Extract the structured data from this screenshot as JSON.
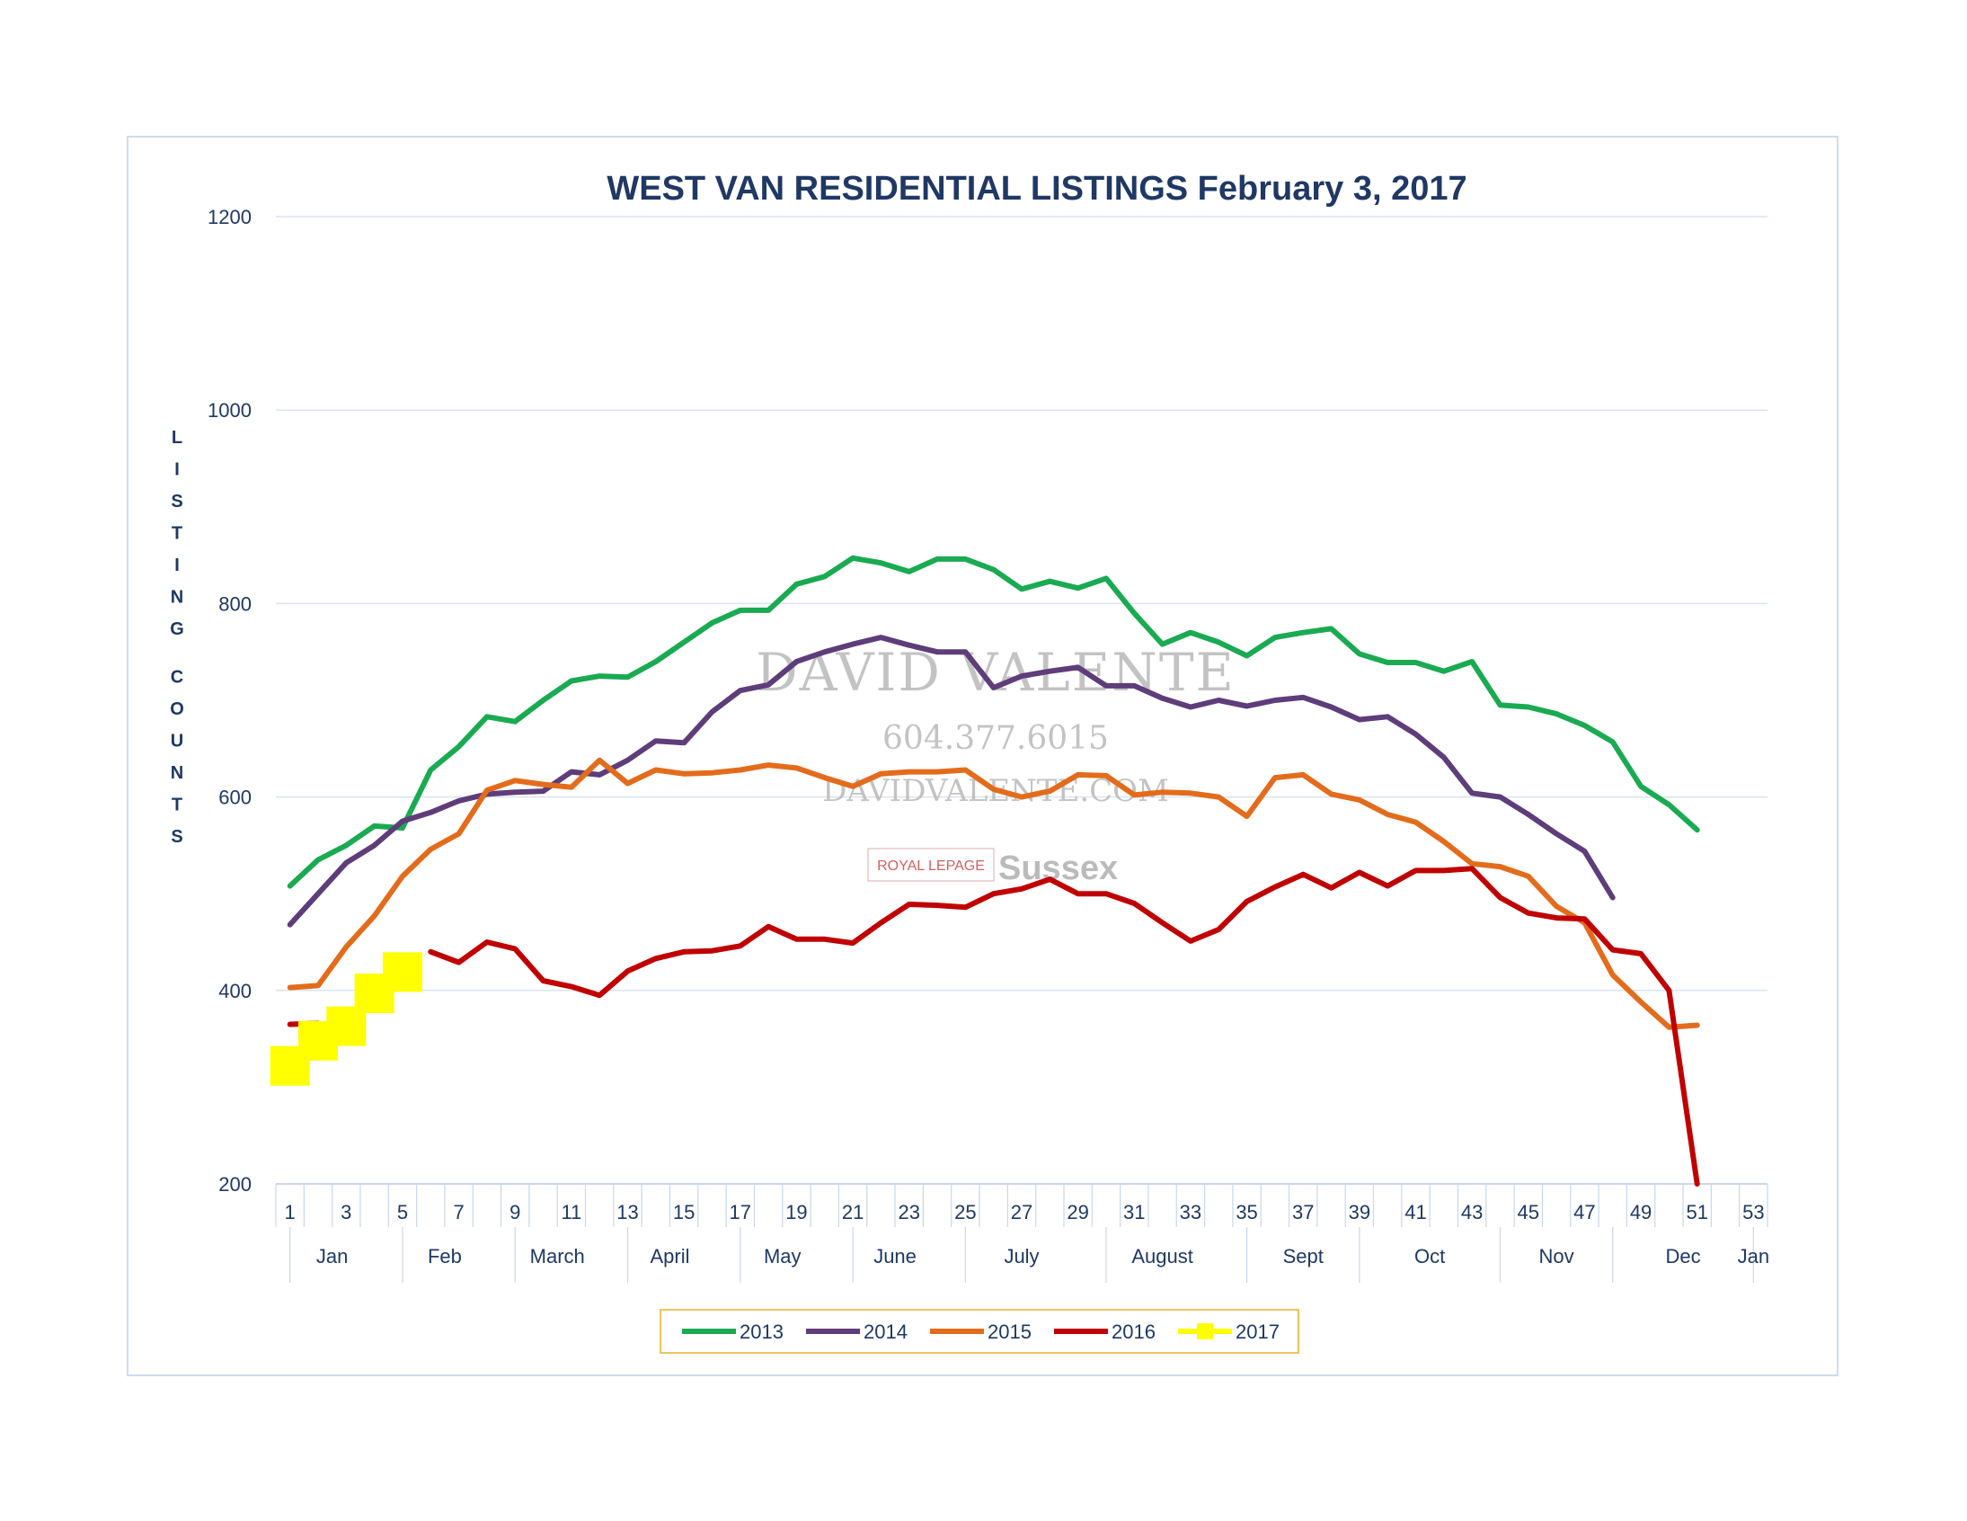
{
  "chart_data": {
    "type": "line",
    "title": "WEST VAN RESIDENTIAL LISTINGS February 3, 2017",
    "ylabel": "LISTING COUNTS",
    "ylim": [
      200,
      1200
    ],
    "yticks": [
      "1200",
      "1000",
      "800",
      "600",
      "400",
      "200"
    ],
    "xlim": [
      1,
      54
    ],
    "x_tick_labels": [
      "1",
      "3",
      "5",
      "7",
      "9",
      "11",
      "13",
      "15",
      "17",
      "19",
      "21",
      "23",
      "25",
      "27",
      "29",
      "31",
      "33",
      "35",
      "37",
      "39",
      "41",
      "43",
      "45",
      "47",
      "49",
      "51",
      "53"
    ],
    "month_labels": [
      {
        "label": "Jan",
        "x": 2.5
      },
      {
        "label": "Feb",
        "x": 6.5
      },
      {
        "label": "March",
        "x": 10.5
      },
      {
        "label": "April",
        "x": 14.5
      },
      {
        "label": "May",
        "x": 18.5
      },
      {
        "label": "June",
        "x": 22.5
      },
      {
        "label": "July",
        "x": 27
      },
      {
        "label": "August",
        "x": 32
      },
      {
        "label": "Sept",
        "x": 37
      },
      {
        "label": "Oct",
        "x": 41.5
      },
      {
        "label": "Nov",
        "x": 46
      },
      {
        "label": "Dec",
        "x": 50.5
      },
      {
        "label": "Jan",
        "x": 53
      }
    ],
    "month_dividers": [
      0.5,
      4.5,
      8.5,
      12.5,
      16.5,
      20.5,
      24.5,
      29.5,
      34.5,
      38.5,
      43.5,
      47.5,
      52.5
    ],
    "grid": "horizontal",
    "legend_position": "bottom",
    "series": [
      {
        "name": "2013",
        "color": "#1aaa52",
        "marker": false,
        "values": [
          508,
          535,
          550,
          570,
          568,
          628,
          652,
          683,
          678,
          700,
          720,
          725,
          724,
          740,
          760,
          780,
          793,
          793,
          820,
          828,
          847,
          842,
          833,
          846,
          846,
          835,
          815,
          823,
          816,
          826,
          790,
          758,
          770,
          760,
          746,
          765,
          770,
          774,
          748,
          739,
          739,
          730,
          740,
          695,
          693,
          686,
          674,
          657,
          611,
          592,
          566
        ]
      },
      {
        "name": "2014",
        "color": "#5e3d7a",
        "marker": false,
        "values": [
          468,
          500,
          532,
          550,
          575,
          584,
          596,
          603,
          605,
          606,
          626,
          623,
          638,
          658,
          656,
          688,
          710,
          716,
          740,
          750,
          758,
          765,
          757,
          750,
          750,
          713,
          725,
          730,
          734,
          715,
          715,
          702,
          693,
          700,
          694,
          700,
          703,
          693,
          680,
          683,
          665,
          641,
          604,
          600,
          582,
          562,
          544,
          496
        ]
      },
      {
        "name": "2015",
        "color": "#e36c1c",
        "marker": false,
        "values": [
          403,
          405,
          445,
          477,
          518,
          546,
          562,
          607,
          617,
          613,
          610,
          638,
          614,
          628,
          624,
          625,
          628,
          633,
          630,
          620,
          611,
          624,
          626,
          626,
          628,
          608,
          600,
          606,
          623,
          622,
          602,
          605,
          604,
          600,
          580,
          620,
          623,
          603,
          597,
          582,
          574,
          554,
          531,
          528,
          518,
          487,
          470,
          416,
          388,
          362,
          364
        ]
      },
      {
        "name": "2016",
        "color": "#c00000",
        "marker": false,
        "values": [
          365,
          366,
          null,
          null,
          null,
          440,
          429,
          450,
          443,
          410,
          404,
          395,
          420,
          433,
          440,
          441,
          446,
          466,
          453,
          453,
          449,
          470,
          489,
          488,
          486,
          500,
          505,
          515,
          500,
          500,
          490,
          470,
          451,
          463,
          492,
          507,
          520,
          506,
          522,
          508,
          524,
          524,
          526,
          496,
          480,
          475,
          474,
          442,
          438,
          400,
          200
        ]
      },
      {
        "name": "2017",
        "color": "#ffff00",
        "marker": true,
        "values": [
          322,
          348,
          363,
          397,
          419
        ]
      }
    ]
  },
  "watermark": {
    "name": "DAVID VALENTE",
    "phone": "604.377.6015",
    "site": "DAVIDVALENTE.COM",
    "brand": "ROYAL LEPAGE",
    "brand2": "Sussex"
  }
}
